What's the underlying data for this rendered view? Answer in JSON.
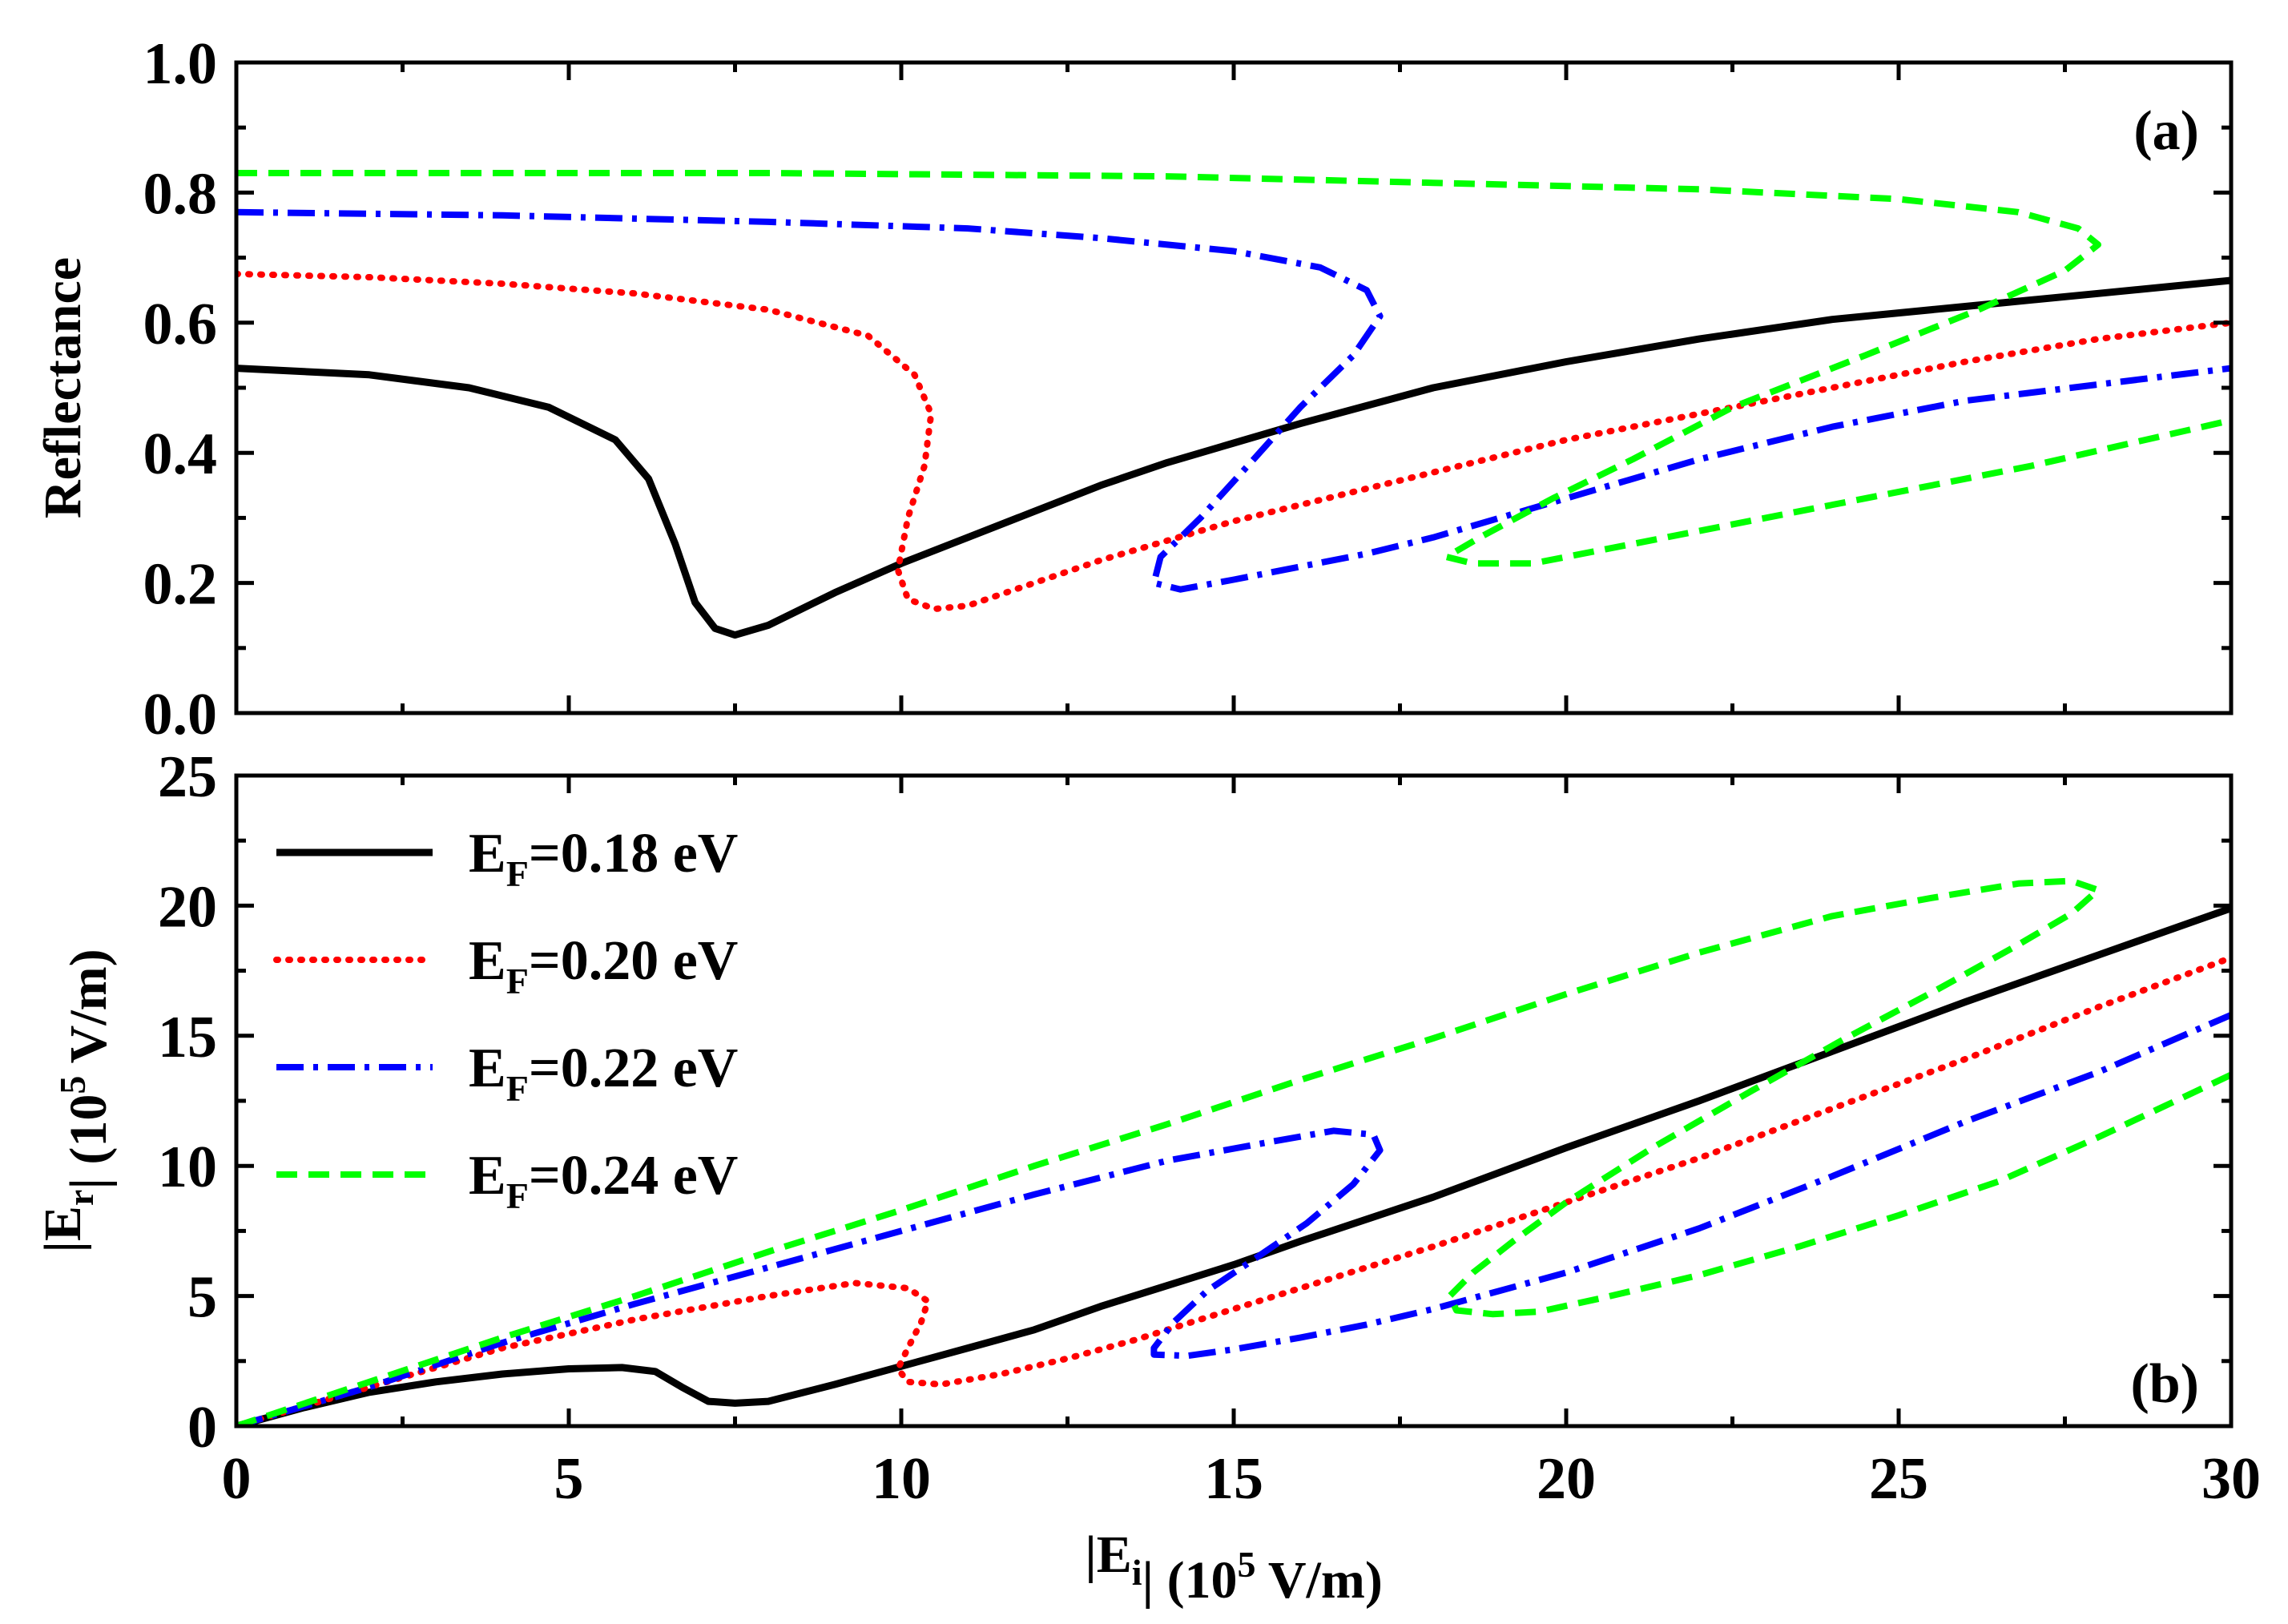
{
  "chart_data": [
    {
      "type": "line",
      "panel_label": "(a)",
      "ylabel": "Reflectance",
      "xlim": [
        0,
        30
      ],
      "ylim": [
        0,
        1.0
      ],
      "x_ticks": [
        0,
        5,
        10,
        15,
        20,
        25,
        30
      ],
      "y_ticks": [
        0.0,
        0.2,
        0.4,
        0.6,
        0.8,
        1.0
      ],
      "y_tick_labels": [
        "0.0",
        "0.2",
        "0.4",
        "0.6",
        "0.8",
        "1.0"
      ],
      "series": [
        {
          "name": "E_F=0.18 eV",
          "color": "#000000",
          "style": "solid",
          "points": [
            [
              0,
              0.53
            ],
            [
              2,
              0.52
            ],
            [
              3.5,
              0.5
            ],
            [
              4.7,
              0.47
            ],
            [
              5.7,
              0.42
            ],
            [
              6.2,
              0.36
            ],
            [
              6.6,
              0.26
            ],
            [
              6.9,
              0.17
            ],
            [
              7.2,
              0.13
            ],
            [
              7.5,
              0.12
            ],
            [
              8,
              0.135
            ],
            [
              9,
              0.185
            ],
            [
              10,
              0.23
            ],
            [
              11,
              0.27
            ],
            [
              12,
              0.31
            ],
            [
              13,
              0.35
            ],
            [
              14,
              0.385
            ],
            [
              15,
              0.415
            ],
            [
              16,
              0.445
            ],
            [
              18,
              0.5
            ],
            [
              20,
              0.54
            ],
            [
              22,
              0.575
            ],
            [
              24,
              0.605
            ],
            [
              26,
              0.625
            ],
            [
              28,
              0.645
            ],
            [
              30,
              0.665
            ]
          ]
        },
        {
          "name": "E_F=0.20 eV",
          "color": "#ff0000",
          "style": "dotted",
          "points": [
            [
              0,
              0.675
            ],
            [
              2,
              0.67
            ],
            [
              4,
              0.66
            ],
            [
              6,
              0.645
            ],
            [
              8,
              0.62
            ],
            [
              9.5,
              0.58
            ],
            [
              10.2,
              0.52
            ],
            [
              10.45,
              0.46
            ],
            [
              10.35,
              0.38
            ],
            [
              10.1,
              0.3
            ],
            [
              9.95,
              0.22
            ],
            [
              10.1,
              0.175
            ],
            [
              10.5,
              0.16
            ],
            [
              11,
              0.165
            ],
            [
              12,
              0.2
            ],
            [
              13,
              0.235
            ],
            [
              14,
              0.265
            ],
            [
              15,
              0.295
            ],
            [
              16,
              0.32
            ],
            [
              18,
              0.37
            ],
            [
              20,
              0.42
            ],
            [
              22,
              0.46
            ],
            [
              24,
              0.5
            ],
            [
              26,
              0.54
            ],
            [
              28,
              0.575
            ],
            [
              30,
              0.6
            ]
          ]
        },
        {
          "name": "E_F=0.22 eV",
          "color": "#0000ff",
          "style": "dashdot",
          "points": [
            [
              0,
              0.77
            ],
            [
              4,
              0.765
            ],
            [
              8,
              0.755
            ],
            [
              11,
              0.745
            ],
            [
              13,
              0.73
            ],
            [
              15,
              0.71
            ],
            [
              16.3,
              0.685
            ],
            [
              17,
              0.65
            ],
            [
              17.2,
              0.61
            ],
            [
              16.8,
              0.55
            ],
            [
              16,
              0.47
            ],
            [
              15.3,
              0.39
            ],
            [
              14.5,
              0.3
            ],
            [
              13.9,
              0.24
            ],
            [
              13.8,
              0.2
            ],
            [
              14.2,
              0.19
            ],
            [
              15,
              0.205
            ],
            [
              16,
              0.225
            ],
            [
              17,
              0.245
            ],
            [
              18,
              0.27
            ],
            [
              19,
              0.3
            ],
            [
              20,
              0.33
            ],
            [
              22,
              0.39
            ],
            [
              24,
              0.44
            ],
            [
              26,
              0.48
            ],
            [
              28,
              0.505
            ],
            [
              30,
              0.53
            ]
          ]
        },
        {
          "name": "E_F=0.24 eV",
          "color": "#00ff00",
          "style": "dashed",
          "points": [
            [
              0,
              0.83
            ],
            [
              8,
              0.83
            ],
            [
              14,
              0.825
            ],
            [
              18,
              0.815
            ],
            [
              22,
              0.805
            ],
            [
              25,
              0.79
            ],
            [
              26.8,
              0.77
            ],
            [
              27.7,
              0.745
            ],
            [
              28,
              0.72
            ],
            [
              27.5,
              0.68
            ],
            [
              26.2,
              0.62
            ],
            [
              24.5,
              0.55
            ],
            [
              22.5,
              0.47
            ],
            [
              21,
              0.39
            ],
            [
              19.8,
              0.33
            ],
            [
              18.7,
              0.27
            ],
            [
              18.2,
              0.24
            ],
            [
              18.6,
              0.23
            ],
            [
              19.5,
              0.23
            ],
            [
              21,
              0.26
            ],
            [
              23,
              0.3
            ],
            [
              25,
              0.34
            ],
            [
              27,
              0.38
            ],
            [
              28.5,
              0.415
            ],
            [
              30,
              0.45
            ]
          ]
        }
      ]
    },
    {
      "type": "line",
      "panel_label": "(b)",
      "ylabel": "|E_r| (10^5 V/m)",
      "xlabel": "|E_i| (10^5 V/m)",
      "xlim": [
        0,
        30
      ],
      "ylim": [
        0,
        25
      ],
      "x_ticks": [
        0,
        5,
        10,
        15,
        20,
        25,
        30
      ],
      "x_tick_labels": [
        "0",
        "5",
        "10",
        "15",
        "20",
        "25",
        "30"
      ],
      "y_ticks": [
        0,
        5,
        10,
        15,
        20,
        25
      ],
      "y_tick_labels": [
        "0",
        "5",
        "10",
        "15",
        "20",
        "25"
      ],
      "legend": {
        "placement": "top-left",
        "entries": [
          {
            "prefix": "E",
            "sub": "F",
            "value": "=0.18 eV",
            "color": "#000000",
            "style": "solid"
          },
          {
            "prefix": "E",
            "sub": "F",
            "value": "=0.20 eV",
            "color": "#ff0000",
            "style": "dotted"
          },
          {
            "prefix": "E",
            "sub": "F",
            "value": "=0.22 eV",
            "color": "#0000ff",
            "style": "dashdot"
          },
          {
            "prefix": "E",
            "sub": "F",
            "value": "=0.24 eV",
            "color": "#00ff00",
            "style": "dashed"
          }
        ]
      },
      "series": [
        {
          "name": "E_F=0.18 eV",
          "color": "#000000",
          "style": "solid",
          "points": [
            [
              0,
              0
            ],
            [
              1,
              0.7
            ],
            [
              2,
              1.3
            ],
            [
              3,
              1.7
            ],
            [
              4,
              2.0
            ],
            [
              5,
              2.2
            ],
            [
              5.8,
              2.25
            ],
            [
              6.3,
              2.1
            ],
            [
              6.7,
              1.5
            ],
            [
              7.1,
              0.95
            ],
            [
              7.5,
              0.88
            ],
            [
              8,
              0.95
            ],
            [
              9,
              1.6
            ],
            [
              10,
              2.3
            ],
            [
              11,
              3.0
            ],
            [
              12,
              3.7
            ],
            [
              13,
              4.6
            ],
            [
              14,
              5.4
            ],
            [
              15,
              6.2
            ],
            [
              16,
              7.1
            ],
            [
              18,
              8.8
            ],
            [
              20,
              10.7
            ],
            [
              22,
              12.5
            ],
            [
              24,
              14.4
            ],
            [
              26,
              16.3
            ],
            [
              28,
              18.1
            ],
            [
              30,
              19.9
            ]
          ]
        },
        {
          "name": "E_F=0.20 eV",
          "color": "#ff0000",
          "style": "dotted",
          "points": [
            [
              0,
              0
            ],
            [
              2,
              1.5
            ],
            [
              4,
              3.0
            ],
            [
              6,
              4.1
            ],
            [
              8,
              5.0
            ],
            [
              9.3,
              5.5
            ],
            [
              10.1,
              5.3
            ],
            [
              10.4,
              4.8
            ],
            [
              10.3,
              4.0
            ],
            [
              10.1,
              3.0
            ],
            [
              9.95,
              2.2
            ],
            [
              10.1,
              1.7
            ],
            [
              10.6,
              1.6
            ],
            [
              11.5,
              2.0
            ],
            [
              12.5,
              2.6
            ],
            [
              13.5,
              3.3
            ],
            [
              14,
              3.7
            ],
            [
              15,
              4.5
            ],
            [
              16,
              5.3
            ],
            [
              18,
              6.9
            ],
            [
              20,
              8.6
            ],
            [
              22,
              10.3
            ],
            [
              24,
              12.2
            ],
            [
              26,
              14.1
            ],
            [
              28,
              16.1
            ],
            [
              30,
              18.0
            ]
          ]
        },
        {
          "name": "E_F=0.22 eV",
          "color": "#0000ff",
          "style": "dashdot",
          "points": [
            [
              0,
              0
            ],
            [
              2,
              1.5
            ],
            [
              4,
              3.2
            ],
            [
              6,
              4.7
            ],
            [
              8,
              6.1
            ],
            [
              10,
              7.5
            ],
            [
              12,
              8.9
            ],
            [
              14,
              10.2
            ],
            [
              15.5,
              10.9
            ],
            [
              16.5,
              11.35
            ],
            [
              17.1,
              11.2
            ],
            [
              17.2,
              10.6
            ],
            [
              16.8,
              9.3
            ],
            [
              16.1,
              7.8
            ],
            [
              15.3,
              6.4
            ],
            [
              14.6,
              5.2
            ],
            [
              14.1,
              4.0
            ],
            [
              13.8,
              3.0
            ],
            [
              13.8,
              2.75
            ],
            [
              14.3,
              2.7
            ],
            [
              15,
              2.95
            ],
            [
              16,
              3.4
            ],
            [
              17,
              3.9
            ],
            [
              18,
              4.5
            ],
            [
              19,
              5.2
            ],
            [
              20,
              5.9
            ],
            [
              22,
              7.6
            ],
            [
              24,
              9.6
            ],
            [
              26,
              11.7
            ],
            [
              28,
              13.6
            ],
            [
              30,
              15.8
            ]
          ]
        },
        {
          "name": "E_F=0.24 eV",
          "color": "#00ff00",
          "style": "dashed",
          "points": [
            [
              0,
              0
            ],
            [
              2,
              1.7
            ],
            [
              4,
              3.4
            ],
            [
              6,
              5.0
            ],
            [
              8,
              6.7
            ],
            [
              10,
              8.3
            ],
            [
              12,
              10.0
            ],
            [
              14,
              11.6
            ],
            [
              16,
              13.3
            ],
            [
              18,
              14.9
            ],
            [
              20,
              16.6
            ],
            [
              22,
              18.2
            ],
            [
              24,
              19.6
            ],
            [
              25.5,
              20.3
            ],
            [
              26.8,
              20.85
            ],
            [
              27.6,
              20.95
            ],
            [
              28,
              20.6
            ],
            [
              27.6,
              19.7
            ],
            [
              26.8,
              18.5
            ],
            [
              25.6,
              16.8
            ],
            [
              24.2,
              14.9
            ],
            [
              22.8,
              12.9
            ],
            [
              21.3,
              10.7
            ],
            [
              20,
              8.6
            ],
            [
              19.2,
              7.1
            ],
            [
              18.6,
              5.9
            ],
            [
              18.25,
              5.0
            ],
            [
              18.35,
              4.45
            ],
            [
              18.9,
              4.3
            ],
            [
              19.6,
              4.4
            ],
            [
              20.5,
              4.9
            ],
            [
              22,
              5.8
            ],
            [
              23.5,
              6.9
            ],
            [
              25,
              8.1
            ],
            [
              26.5,
              9.4
            ],
            [
              28,
              11.1
            ],
            [
              29,
              12.3
            ],
            [
              30,
              13.5
            ]
          ]
        }
      ]
    }
  ]
}
